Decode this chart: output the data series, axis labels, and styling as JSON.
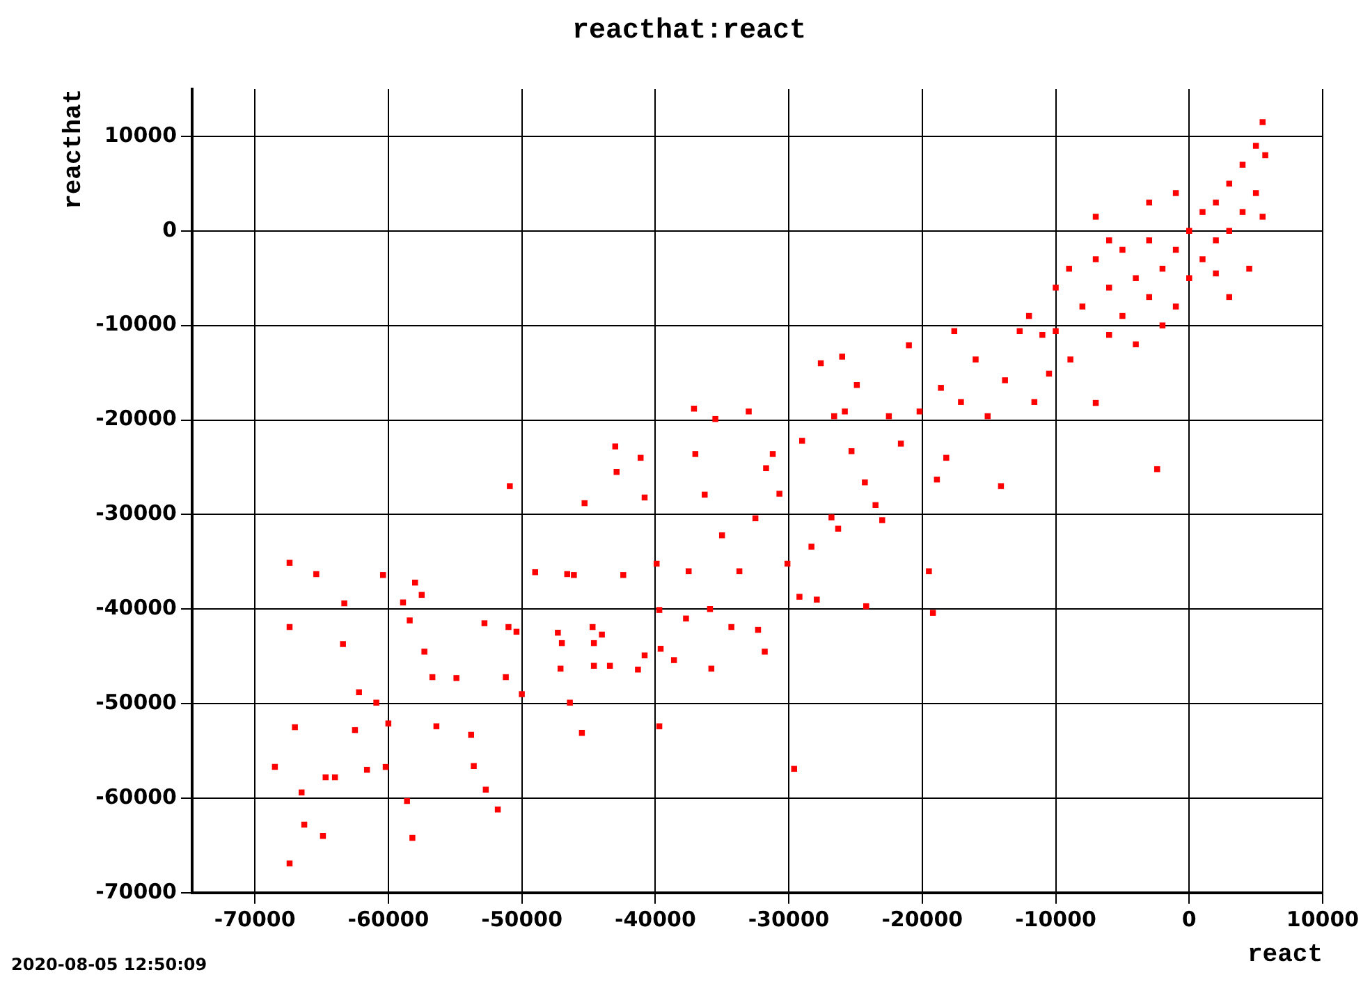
{
  "chart_data": {
    "type": "scatter",
    "title": "reacthat:react",
    "xlabel": "react",
    "ylabel": "reacthat",
    "annotations": [
      "2020-08-05 12:50:09"
    ],
    "marker": "square",
    "grid": true,
    "legend": false,
    "xlim": [
      -74700,
      10000
    ],
    "ylim": [
      -70000,
      15000
    ],
    "xticks": [
      -70000,
      -60000,
      -50000,
      -40000,
      -30000,
      -20000,
      -10000,
      0,
      10000
    ],
    "yticks": [
      -70000,
      -60000,
      -50000,
      -40000,
      -30000,
      -20000,
      -10000,
      0,
      10000
    ],
    "series": [
      {
        "color": "#ff0000",
        "x": [
          -68500,
          -67400,
          -67400,
          -67000,
          -67400,
          -66500,
          -66300,
          -65400,
          -64900,
          -64700,
          -64000,
          -63400,
          -63300,
          -62500,
          -62200,
          -61600,
          -60900,
          -60400,
          -60200,
          -60000,
          -58900,
          -58600,
          -58400,
          -58200,
          -58000,
          -57500,
          -57300,
          -56700,
          -56400,
          -54900,
          -53800,
          -53600,
          -52800,
          -52700,
          -51800,
          -51200,
          -51000,
          -50900,
          -50400,
          -50000,
          -49000,
          -47300,
          -47100,
          -47000,
          -46600,
          -46400,
          -46100,
          -45500,
          -45300,
          -44700,
          -44600,
          -44600,
          -44000,
          -43400,
          -43000,
          -42900,
          -42400,
          -41300,
          -41100,
          -40800,
          -40800,
          -39900,
          -39700,
          -39700,
          -39600,
          -38600,
          -37700,
          -37500,
          -37100,
          -37000,
          -36300,
          -35900,
          -35800,
          -35500,
          -35000,
          -34300,
          -33700,
          -33000,
          -32500,
          -32300,
          -31800,
          -31700,
          -31200,
          -30700,
          -30100,
          -29600,
          -29200,
          -29000,
          -28300,
          -27900,
          -27600,
          -26800,
          -26600,
          -26300,
          -26000,
          -25800,
          -25300,
          -24900,
          -24300,
          -24200,
          -23500,
          -23000,
          -22500,
          -21600,
          -21000,
          -20200,
          -19500,
          -19200,
          -18900,
          -18600,
          -18200,
          -17600,
          -17100,
          -16000,
          -15100,
          -14100,
          -13800,
          -12700,
          -11600,
          -10500,
          -10000,
          -8900,
          -7000,
          -2400,
          -10000,
          -9000,
          -8000,
          -7000,
          -6000,
          -5000,
          -5000,
          -4000,
          -3000,
          -3000,
          -2000,
          -1000,
          -1000,
          0,
          0,
          1000,
          1000,
          2000,
          2000,
          3000,
          3000,
          4000,
          4000,
          5000,
          5000,
          5500,
          5500,
          4500,
          -12000,
          -11000,
          -6000,
          -4000,
          -2000,
          -7000,
          -3000,
          -1000,
          2000,
          3000,
          5700,
          -6000
        ],
        "values": [
          -56700,
          -35100,
          -41900,
          -52500,
          -66900,
          -59400,
          -62800,
          -36300,
          -64000,
          -57800,
          -57800,
          -43700,
          -39400,
          -52800,
          -48800,
          -57000,
          -49900,
          -36400,
          -56700,
          -52100,
          -39300,
          -60300,
          -41200,
          -64200,
          -37200,
          -38500,
          -44500,
          -47200,
          -52400,
          -47300,
          -53300,
          -56600,
          -41500,
          -59100,
          -61200,
          -47200,
          -41900,
          -27000,
          -42400,
          -49000,
          -36100,
          -42500,
          -46300,
          -43600,
          -36300,
          -49900,
          -36400,
          -53100,
          -28800,
          -41900,
          -43600,
          -46000,
          -42700,
          -46000,
          -22800,
          -25500,
          -36400,
          -46400,
          -24000,
          -28200,
          -44900,
          -35200,
          -40100,
          -52400,
          -44200,
          -45400,
          -41000,
          -36000,
          -18800,
          -23600,
          -27900,
          -40000,
          -46300,
          -19900,
          -32200,
          -41900,
          -36000,
          -19100,
          -30400,
          -42200,
          -44500,
          -25100,
          -23600,
          -27800,
          -35200,
          -56900,
          -38700,
          -22200,
          -33400,
          -39000,
          -14000,
          -30300,
          -19600,
          -31500,
          -13300,
          -19100,
          -23300,
          -16300,
          -26600,
          -39700,
          -29000,
          -30600,
          -19600,
          -22500,
          -12100,
          -19100,
          -36000,
          -40400,
          -26300,
          -16600,
          -24000,
          -10600,
          -18100,
          -13600,
          -19600,
          -27000,
          -15800,
          -10600,
          -18100,
          -15100,
          -10600,
          -13600,
          -18200,
          -25200,
          -6000,
          -4000,
          -8000,
          -3000,
          -6000,
          -2000,
          -9000,
          -5000,
          -1000,
          -7000,
          -4000,
          -2000,
          -8000,
          0,
          -5000,
          2000,
          -3000,
          3000,
          -1000,
          5000,
          0,
          7000,
          2000,
          9000,
          4000,
          11500,
          1500,
          -4000,
          -9000,
          -11000,
          -11000,
          -12000,
          -10000,
          1500,
          3000,
          4000,
          -4500,
          -7000,
          8000,
          -1000
        ]
      }
    ]
  }
}
